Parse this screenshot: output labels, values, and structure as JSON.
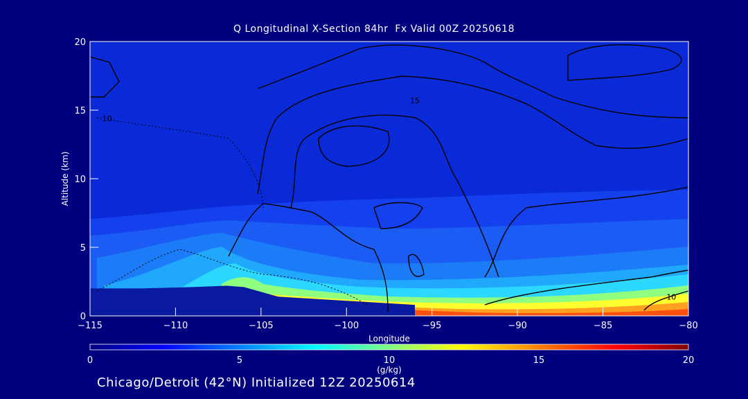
{
  "chart_data": {
    "type": "heatmap",
    "title": "Q Longitudinal X-Section 84hr  Fx Valid 00Z 20250618",
    "xlabel": "Longitude",
    "ylabel": "Altitude (km)",
    "xlim": [
      -115,
      -80
    ],
    "ylim": [
      0,
      20
    ],
    "xticks": [
      -115,
      -110,
      -105,
      -100,
      -95,
      -90,
      -85,
      -80
    ],
    "yticks": [
      0,
      5,
      10,
      15,
      20
    ],
    "grid": false,
    "colorbar": {
      "label": "(g/kg)",
      "range": [
        0,
        20
      ],
      "ticks": [
        0,
        5,
        10,
        15,
        20
      ],
      "colors": [
        "#00007f",
        "#0000ff",
        "#007fff",
        "#00ffff",
        "#7fff7f",
        "#ffff00",
        "#ff7f00",
        "#ff0000",
        "#7f0000"
      ]
    },
    "moist_layer_top_km": [
      {
        "lon": -115,
        "z": 2.0
      },
      {
        "lon": -112,
        "z": 2.0
      },
      {
        "lon": -109,
        "z": 2.1
      },
      {
        "lon": -107,
        "z": 2.2
      },
      {
        "lon": -106,
        "z": 2.1
      },
      {
        "lon": -104,
        "z": 1.4
      },
      {
        "lon": -100,
        "z": 1.1
      },
      {
        "lon": -96,
        "z": 0.8
      },
      {
        "lon": -93,
        "z": 0.5
      },
      {
        "lon": -90,
        "z": 0.45
      },
      {
        "lon": -85,
        "z": 0.5
      },
      {
        "lon": -82,
        "z": 0.6
      },
      {
        "lon": -80,
        "z": 0.6
      }
    ],
    "contour_labels": [
      {
        "text": "10",
        "lon": -81,
        "z": 1.4
      },
      {
        "text": "15",
        "lon": -96,
        "z": 15.7
      },
      {
        "text": "10",
        "lon": -114,
        "z": 14.4
      }
    ],
    "note_text": "Chicago/Detroit (42°N) Initialized 12Z 20250614"
  }
}
